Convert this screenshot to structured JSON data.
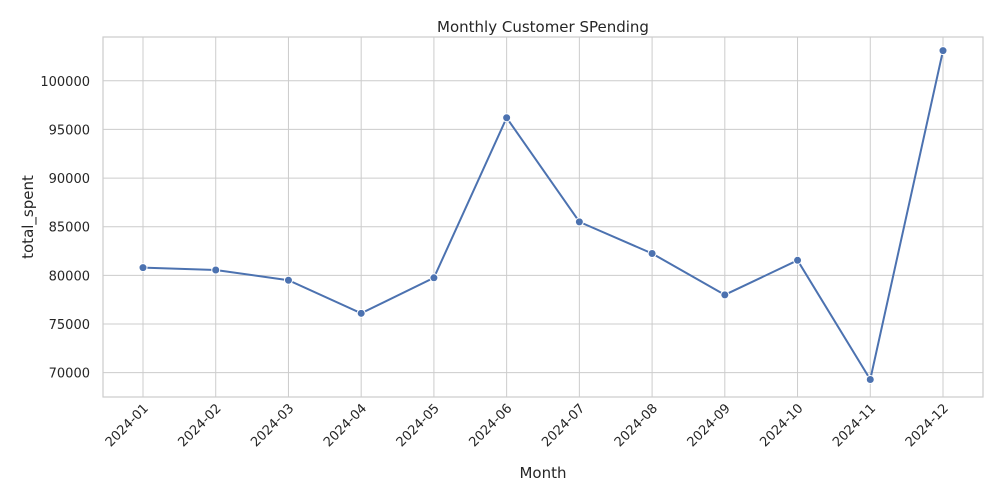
{
  "chart_data": {
    "type": "line",
    "title": "Monthly Customer SPending",
    "xlabel": "Month",
    "ylabel": "total_spent",
    "categories": [
      "2024-01",
      "2024-02",
      "2024-03",
      "2024-04",
      "2024-05",
      "2024-06",
      "2024-07",
      "2024-08",
      "2024-09",
      "2024-10",
      "2024-11",
      "2024-12"
    ],
    "series": [
      {
        "values": [
          80800,
          80550,
          79500,
          76100,
          79750,
          96200,
          85500,
          82250,
          78000,
          81550,
          69300,
          103100
        ]
      }
    ],
    "yticks": [
      70000,
      75000,
      80000,
      85000,
      90000,
      95000,
      100000
    ],
    "ylim": [
      67500,
      104500
    ],
    "grid": true,
    "legend": "none",
    "colors": {
      "line": "#4c72b0",
      "grid": "#cccccc",
      "text": "#262626"
    }
  }
}
